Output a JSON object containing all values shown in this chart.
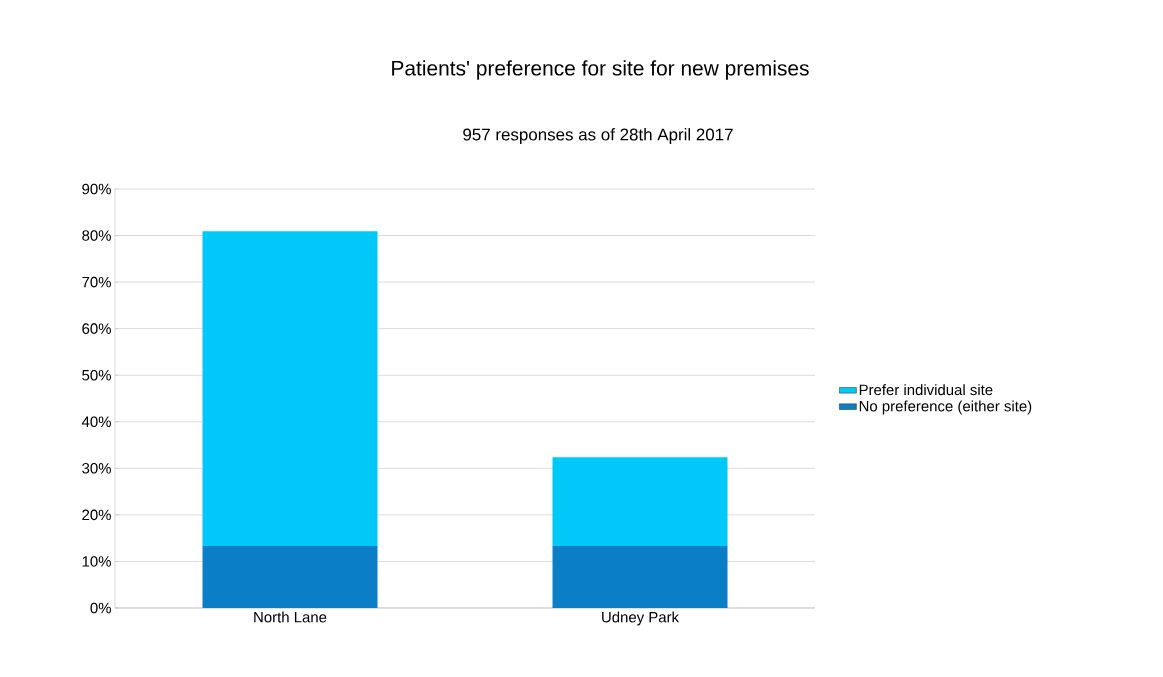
{
  "chart_data": {
    "type": "bar",
    "title": "Patients' preference for site for new premises",
    "subtitle": "957 responses as of 28th April 2017",
    "categories": [
      "North Lane",
      "Udney Park"
    ],
    "stacked": true,
    "series": [
      {
        "name": "No preference (either site)",
        "color": "#0a7fc8",
        "values": [
          13.3,
          13.3
        ]
      },
      {
        "name": "Prefer individual site",
        "color": "#00c8f8",
        "values": [
          67.6,
          19.1
        ]
      }
    ],
    "ylim": [
      0,
      90
    ],
    "yticks": [
      {
        "value": 0,
        "label": "0%"
      },
      {
        "value": 10,
        "label": "10%"
      },
      {
        "value": 20,
        "label": "20%"
      },
      {
        "value": 30,
        "label": "30%"
      },
      {
        "value": 40,
        "label": "40%"
      },
      {
        "value": 50,
        "label": "50%"
      },
      {
        "value": 60,
        "label": "60%"
      },
      {
        "value": 70,
        "label": "70%"
      },
      {
        "value": 80,
        "label": "80%"
      },
      {
        "value": 90,
        "label": "90%"
      }
    ],
    "grid": "y",
    "legend": "right"
  }
}
